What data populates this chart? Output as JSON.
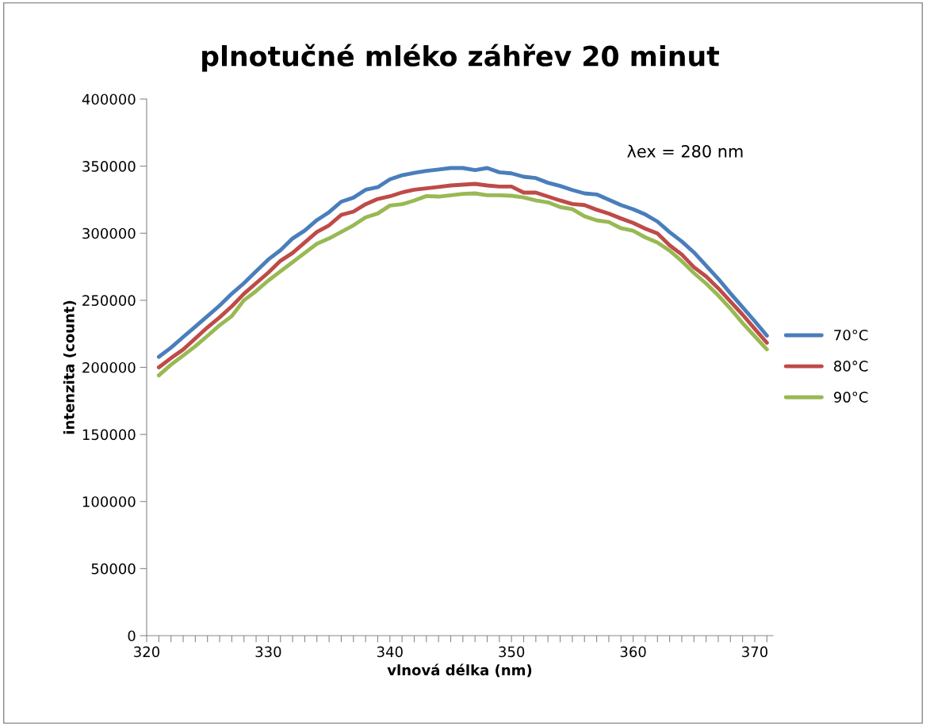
{
  "chart_data": {
    "type": "line",
    "title": "plnotučné mléko záhřev 20 minut",
    "xlabel": "vlnová délka (nm)",
    "ylabel": "intenzita (count)",
    "annotations": [
      "λex = 280 nm"
    ],
    "x": [
      321,
      322,
      323,
      324,
      325,
      326,
      327,
      328,
      329,
      330,
      331,
      332,
      333,
      334,
      335,
      336,
      337,
      338,
      339,
      340,
      341,
      342,
      343,
      344,
      345,
      346,
      347,
      348,
      349,
      350,
      351,
      352,
      353,
      354,
      355,
      356,
      357,
      358,
      359,
      360,
      361,
      362,
      363,
      364,
      365,
      366,
      367,
      368,
      369,
      370,
      371
    ],
    "xlim": [
      320,
      371.5
    ],
    "xticks": [
      320,
      {
        "value": 321,
        "label": null
      },
      {
        "value": 322,
        "label": null
      },
      {
        "value": 323,
        "label": null
      },
      {
        "value": 324,
        "label": null
      },
      {
        "value": 325,
        "label": null
      },
      {
        "value": 326,
        "label": null
      },
      {
        "value": 327,
        "label": null
      },
      {
        "value": 328,
        "label": null
      },
      {
        "value": 329,
        "label": null
      },
      330,
      {
        "value": 331,
        "label": null
      },
      {
        "value": 332,
        "label": null
      },
      {
        "value": 333,
        "label": null
      },
      {
        "value": 334,
        "label": null
      },
      {
        "value": 335,
        "label": null
      },
      {
        "value": 336,
        "label": null
      },
      {
        "value": 337,
        "label": null
      },
      {
        "value": 338,
        "label": null
      },
      {
        "value": 339,
        "label": null
      },
      340,
      {
        "value": 341,
        "label": null
      },
      {
        "value": 342,
        "label": null
      },
      {
        "value": 343,
        "label": null
      },
      {
        "value": 344,
        "label": null
      },
      {
        "value": 345,
        "label": null
      },
      {
        "value": 346,
        "label": null
      },
      {
        "value": 347,
        "label": null
      },
      {
        "value": 348,
        "label": null
      },
      {
        "value": 349,
        "label": null
      },
      350,
      {
        "value": 351,
        "label": null
      },
      {
        "value": 352,
        "label": null
      },
      {
        "value": 353,
        "label": null
      },
      {
        "value": 354,
        "label": null
      },
      {
        "value": 355,
        "label": null
      },
      {
        "value": 356,
        "label": null
      },
      {
        "value": 357,
        "label": null
      },
      {
        "value": 358,
        "label": null
      },
      {
        "value": 359,
        "label": null
      },
      360,
      {
        "value": 361,
        "label": null
      },
      {
        "value": 362,
        "label": null
      },
      {
        "value": 363,
        "label": null
      },
      {
        "value": 364,
        "label": null
      },
      {
        "value": 365,
        "label": null
      },
      {
        "value": 366,
        "label": null
      },
      {
        "value": 367,
        "label": null
      },
      {
        "value": 368,
        "label": null
      },
      {
        "value": 369,
        "label": null
      },
      370,
      {
        "value": 371,
        "label": null
      }
    ],
    "ylim": [
      0,
      400000
    ],
    "yticks": [
      0,
      50000,
      100000,
      150000,
      200000,
      250000,
      300000,
      350000,
      400000
    ],
    "grid": false,
    "legend": "right",
    "marker": "none",
    "line_style": "solid",
    "series": [
      {
        "name": "70°C",
        "color": "#4a7ebb",
        "values": [
          207800,
          214700,
          222600,
          230400,
          238200,
          246100,
          254900,
          262800,
          271600,
          280400,
          287300,
          296100,
          302000,
          309800,
          315700,
          323500,
          326500,
          332400,
          334300,
          340200,
          343200,
          345000,
          346500,
          347500,
          348600,
          348600,
          347000,
          348600,
          345400,
          344600,
          342100,
          341100,
          337600,
          335200,
          332200,
          329700,
          328900,
          325000,
          321000,
          317900,
          314000,
          308700,
          300800,
          293900,
          285700,
          275800,
          266000,
          255200,
          244800,
          234400,
          223600
        ]
      },
      {
        "name": "80°C",
        "color": "#be4b48",
        "values": [
          200000,
          206900,
          213300,
          221600,
          229800,
          237300,
          245500,
          254900,
          262800,
          270600,
          279400,
          285300,
          293100,
          301000,
          305900,
          313700,
          316100,
          321600,
          325500,
          327500,
          330400,
          332400,
          333500,
          334500,
          335600,
          336200,
          336800,
          335600,
          334800,
          334800,
          330300,
          330300,
          327300,
          324400,
          321800,
          321000,
          317500,
          314600,
          311000,
          307700,
          303400,
          299800,
          291000,
          284100,
          274700,
          267800,
          259000,
          249100,
          239300,
          228700,
          218300
        ]
      },
      {
        "name": "90°C",
        "color": "#98b954",
        "values": [
          194000,
          202000,
          208800,
          215700,
          223500,
          231400,
          238200,
          250000,
          256900,
          264700,
          271600,
          278400,
          285300,
          292200,
          296100,
          301000,
          305900,
          311800,
          314700,
          320600,
          321600,
          324400,
          327700,
          327300,
          328300,
          329300,
          329700,
          328300,
          328300,
          327900,
          326700,
          324400,
          323000,
          319500,
          317900,
          312600,
          309600,
          308300,
          303700,
          301800,
          296900,
          293000,
          287000,
          279200,
          270300,
          262500,
          253600,
          243800,
          233000,
          223200,
          213400
        ]
      }
    ]
  }
}
